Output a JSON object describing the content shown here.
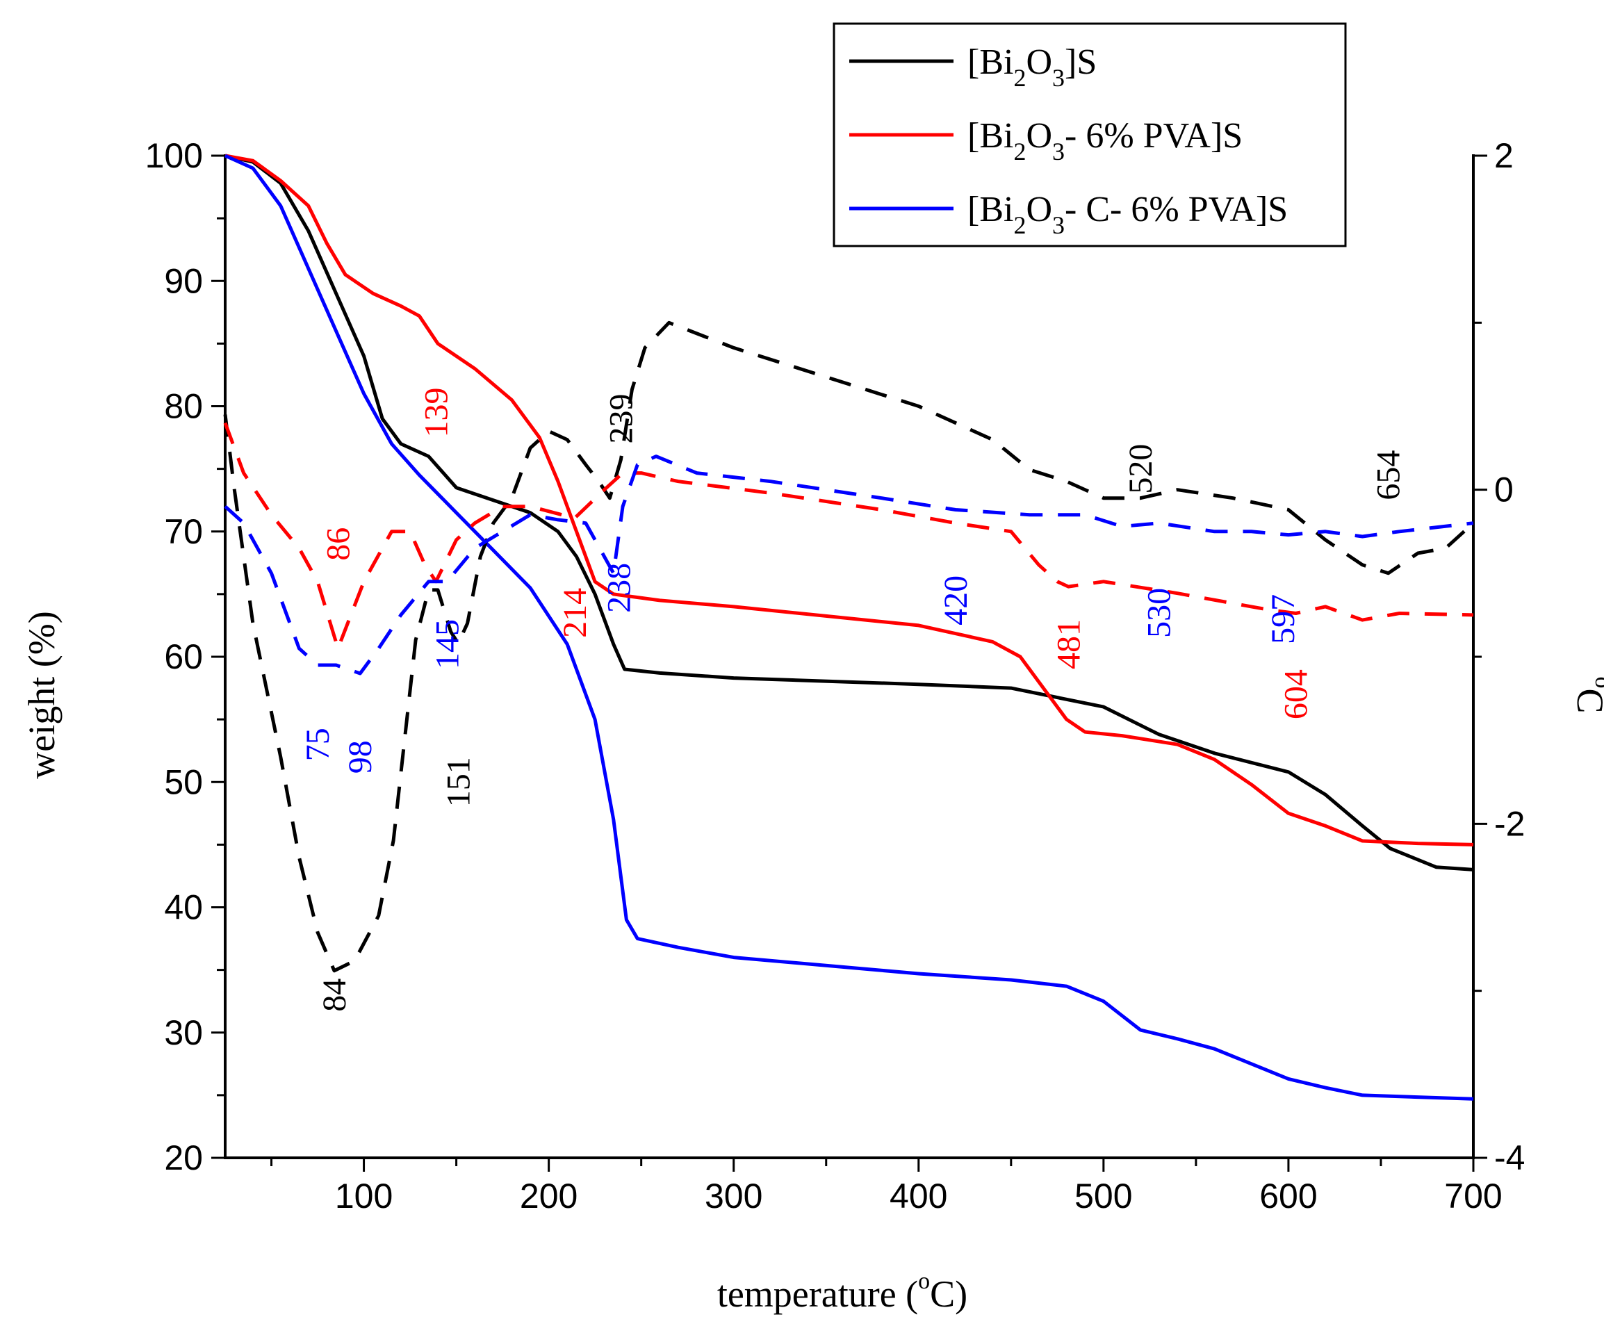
{
  "chart_data": {
    "type": "line",
    "xlabel": {
      "pre": "temperature (",
      "sup": "o",
      "post": "C)"
    },
    "ylabel": "weight (%)",
    "y2label": {
      "sup": "o",
      "post": "C"
    },
    "xlim": [
      25,
      700
    ],
    "ylim": [
      20,
      100
    ],
    "y2lim": [
      -4,
      2
    ],
    "xticks": [
      100,
      200,
      300,
      400,
      500,
      600,
      700
    ],
    "yticks": [
      20,
      30,
      40,
      50,
      60,
      70,
      80,
      90,
      100
    ],
    "y2ticks": [
      -4,
      -2,
      0,
      2
    ],
    "legend_position": "top-right",
    "legend": [
      {
        "key": "black",
        "color": "#000000",
        "prefix": "[Bi",
        "sub1": "2",
        "mid": "O",
        "sub2": "3",
        "suffix": "]S"
      },
      {
        "key": "red",
        "color": "#ff0000",
        "prefix": "[Bi",
        "sub1": "2",
        "mid": "O",
        "sub2": "3",
        "suffix": "- 6% PVA]S"
      },
      {
        "key": "blue",
        "color": "#0000ff",
        "prefix": "[Bi",
        "sub1": "2",
        "mid": "O",
        "sub2": "3",
        "suffix": "- C- 6% PVA]S"
      }
    ],
    "series": [
      {
        "key": "black-weight",
        "color": "#000000",
        "axis": "left",
        "style": "solid",
        "points": [
          [
            25,
            100
          ],
          [
            40,
            99.5
          ],
          [
            55,
            97.8
          ],
          [
            70,
            94
          ],
          [
            85,
            89
          ],
          [
            100,
            84
          ],
          [
            110,
            79
          ],
          [
            120,
            77
          ],
          [
            135,
            76
          ],
          [
            150,
            73.5
          ],
          [
            170,
            72.5
          ],
          [
            190,
            71.5
          ],
          [
            205,
            70
          ],
          [
            215,
            68
          ],
          [
            225,
            65
          ],
          [
            235,
            61
          ],
          [
            241,
            59
          ],
          [
            260,
            58.7
          ],
          [
            300,
            58.3
          ],
          [
            400,
            57.8
          ],
          [
            450,
            57.5
          ],
          [
            500,
            56
          ],
          [
            530,
            53.8
          ],
          [
            560,
            52.3
          ],
          [
            600,
            50.8
          ],
          [
            620,
            49
          ],
          [
            640,
            46.5
          ],
          [
            655,
            44.7
          ],
          [
            680,
            43.2
          ],
          [
            700,
            43
          ]
        ]
      },
      {
        "key": "red-weight",
        "color": "#ff0000",
        "axis": "left",
        "style": "solid",
        "points": [
          [
            25,
            100
          ],
          [
            40,
            99.6
          ],
          [
            55,
            98
          ],
          [
            70,
            96
          ],
          [
            80,
            93
          ],
          [
            90,
            90.5
          ],
          [
            105,
            89
          ],
          [
            120,
            88
          ],
          [
            130,
            87.2
          ],
          [
            140,
            85
          ],
          [
            160,
            83
          ],
          [
            180,
            80.5
          ],
          [
            195,
            77.5
          ],
          [
            205,
            74
          ],
          [
            215,
            70
          ],
          [
            225,
            66
          ],
          [
            235,
            65
          ],
          [
            260,
            64.5
          ],
          [
            300,
            64
          ],
          [
            400,
            62.5
          ],
          [
            440,
            61.2
          ],
          [
            455,
            60
          ],
          [
            470,
            57
          ],
          [
            480,
            55
          ],
          [
            490,
            54
          ],
          [
            510,
            53.7
          ],
          [
            540,
            53
          ],
          [
            560,
            51.8
          ],
          [
            580,
            49.8
          ],
          [
            600,
            47.5
          ],
          [
            620,
            46.5
          ],
          [
            640,
            45.3
          ],
          [
            670,
            45.1
          ],
          [
            700,
            45
          ]
        ]
      },
      {
        "key": "blue-weight",
        "color": "#0000ff",
        "axis": "left",
        "style": "solid",
        "points": [
          [
            25,
            100
          ],
          [
            40,
            99
          ],
          [
            55,
            96
          ],
          [
            70,
            91
          ],
          [
            85,
            86
          ],
          [
            100,
            81
          ],
          [
            115,
            77
          ],
          [
            130,
            74.5
          ],
          [
            150,
            71.5
          ],
          [
            170,
            68.5
          ],
          [
            190,
            65.5
          ],
          [
            210,
            61
          ],
          [
            225,
            55
          ],
          [
            235,
            47
          ],
          [
            242,
            39
          ],
          [
            248,
            37.5
          ],
          [
            270,
            36.8
          ],
          [
            300,
            36
          ],
          [
            400,
            34.7
          ],
          [
            450,
            34.2
          ],
          [
            480,
            33.7
          ],
          [
            500,
            32.5
          ],
          [
            520,
            30.2
          ],
          [
            540,
            29.5
          ],
          [
            560,
            28.7
          ],
          [
            580,
            27.5
          ],
          [
            600,
            26.3
          ],
          [
            620,
            25.6
          ],
          [
            640,
            25
          ],
          [
            700,
            24.7
          ]
        ]
      },
      {
        "key": "black-dta",
        "color": "#000000",
        "axis": "right",
        "style": "dashed",
        "points": [
          [
            25,
            0.45
          ],
          [
            30,
            0
          ],
          [
            40,
            -0.8
          ],
          [
            55,
            -1.6
          ],
          [
            65,
            -2.2
          ],
          [
            75,
            -2.65
          ],
          [
            84,
            -2.88
          ],
          [
            95,
            -2.82
          ],
          [
            108,
            -2.55
          ],
          [
            116,
            -2.1
          ],
          [
            122,
            -1.5
          ],
          [
            128,
            -0.9
          ],
          [
            135,
            -0.6
          ],
          [
            140,
            -0.6
          ],
          [
            147,
            -0.85
          ],
          [
            151,
            -0.92
          ],
          [
            156,
            -0.8
          ],
          [
            163,
            -0.4
          ],
          [
            170,
            -0.2
          ],
          [
            180,
            -0.05
          ],
          [
            190,
            0.25
          ],
          [
            200,
            0.35
          ],
          [
            210,
            0.3
          ],
          [
            220,
            0.15
          ],
          [
            227,
            0.05
          ],
          [
            233,
            -0.05
          ],
          [
            239,
            0.18
          ],
          [
            245,
            0.6
          ],
          [
            252,
            0.85
          ],
          [
            265,
            1.0
          ],
          [
            300,
            0.85
          ],
          [
            400,
            0.5
          ],
          [
            440,
            0.3
          ],
          [
            460,
            0.12
          ],
          [
            480,
            0.05
          ],
          [
            500,
            -0.05
          ],
          [
            520,
            -0.05
          ],
          [
            540,
            0
          ],
          [
            570,
            -0.05
          ],
          [
            600,
            -0.12
          ],
          [
            620,
            -0.3
          ],
          [
            640,
            -0.45
          ],
          [
            654,
            -0.5
          ],
          [
            670,
            -0.38
          ],
          [
            685,
            -0.35
          ],
          [
            700,
            -0.2
          ]
        ]
      },
      {
        "key": "red-dta",
        "color": "#ff0000",
        "axis": "right",
        "style": "dashed",
        "points": [
          [
            25,
            0.4
          ],
          [
            35,
            0.1
          ],
          [
            50,
            -0.15
          ],
          [
            65,
            -0.35
          ],
          [
            75,
            -0.55
          ],
          [
            86,
            -0.95
          ],
          [
            100,
            -0.55
          ],
          [
            115,
            -0.25
          ],
          [
            125,
            -0.25
          ],
          [
            133,
            -0.45
          ],
          [
            139,
            -0.55
          ],
          [
            150,
            -0.3
          ],
          [
            160,
            -0.2
          ],
          [
            175,
            -0.1
          ],
          [
            190,
            -0.1
          ],
          [
            214,
            -0.17
          ],
          [
            230,
            0
          ],
          [
            240,
            0.1
          ],
          [
            250,
            0.1
          ],
          [
            270,
            0.05
          ],
          [
            320,
            -0.02
          ],
          [
            380,
            -0.12
          ],
          [
            420,
            -0.2
          ],
          [
            450,
            -0.25
          ],
          [
            465,
            -0.45
          ],
          [
            475,
            -0.55
          ],
          [
            481,
            -0.58
          ],
          [
            500,
            -0.55
          ],
          [
            540,
            -0.62
          ],
          [
            580,
            -0.7
          ],
          [
            590,
            -0.72
          ],
          [
            604,
            -0.74
          ],
          [
            620,
            -0.7
          ],
          [
            640,
            -0.78
          ],
          [
            660,
            -0.74
          ],
          [
            700,
            -0.75
          ]
        ]
      },
      {
        "key": "blue-dta",
        "color": "#0000ff",
        "axis": "right",
        "style": "dashed",
        "points": [
          [
            25,
            -0.1
          ],
          [
            35,
            -0.2
          ],
          [
            50,
            -0.5
          ],
          [
            65,
            -0.95
          ],
          [
            75,
            -1.05
          ],
          [
            85,
            -1.05
          ],
          [
            98,
            -1.1
          ],
          [
            108,
            -0.95
          ],
          [
            120,
            -0.75
          ],
          [
            135,
            -0.55
          ],
          [
            145,
            -0.55
          ],
          [
            160,
            -0.35
          ],
          [
            175,
            -0.25
          ],
          [
            190,
            -0.15
          ],
          [
            205,
            -0.18
          ],
          [
            220,
            -0.2
          ],
          [
            230,
            -0.4
          ],
          [
            235,
            -0.5
          ],
          [
            240,
            -0.1
          ],
          [
            248,
            0.15
          ],
          [
            258,
            0.2
          ],
          [
            280,
            0.1
          ],
          [
            320,
            0.05
          ],
          [
            380,
            -0.05
          ],
          [
            420,
            -0.12
          ],
          [
            460,
            -0.15
          ],
          [
            490,
            -0.15
          ],
          [
            510,
            -0.22
          ],
          [
            530,
            -0.2
          ],
          [
            560,
            -0.25
          ],
          [
            580,
            -0.25
          ],
          [
            600,
            -0.27
          ],
          [
            620,
            -0.25
          ],
          [
            640,
            -0.28
          ],
          [
            660,
            -0.25
          ],
          [
            700,
            -0.2
          ]
        ]
      }
    ],
    "annotations": [
      {
        "text": "84",
        "color": "#000000",
        "x": 84,
        "y": 33
      },
      {
        "text": "151",
        "color": "#000000",
        "x": 151,
        "y": 50
      },
      {
        "text": "239",
        "color": "#000000",
        "x": 239,
        "y": 79
      },
      {
        "text": "520",
        "color": "#000000",
        "x": 520,
        "y": 75
      },
      {
        "text": "654",
        "color": "#000000",
        "x": 654,
        "y": 74.5
      },
      {
        "text": "86",
        "color": "#ff0000",
        "x": 86,
        "y": 69
      },
      {
        "text": "139",
        "color": "#ff0000",
        "x": 139,
        "y": 79.5
      },
      {
        "text": "214",
        "color": "#ff0000",
        "x": 214,
        "y": 63.5
      },
      {
        "text": "481",
        "color": "#ff0000",
        "x": 481,
        "y": 61
      },
      {
        "text": "604",
        "color": "#ff0000",
        "x": 604,
        "y": 57
      },
      {
        "text": "75",
        "color": "#0000ff",
        "x": 75,
        "y": 53
      },
      {
        "text": "98",
        "color": "#0000ff",
        "x": 98,
        "y": 52
      },
      {
        "text": "145",
        "color": "#0000ff",
        "x": 145,
        "y": 61
      },
      {
        "text": "238",
        "color": "#0000ff",
        "x": 238,
        "y": 65.5
      },
      {
        "text": "420",
        "color": "#0000ff",
        "x": 420,
        "y": 64.5
      },
      {
        "text": "530",
        "color": "#0000ff",
        "x": 530,
        "y": 63.5
      },
      {
        "text": "597",
        "color": "#0000ff",
        "x": 597,
        "y": 63
      }
    ]
  }
}
